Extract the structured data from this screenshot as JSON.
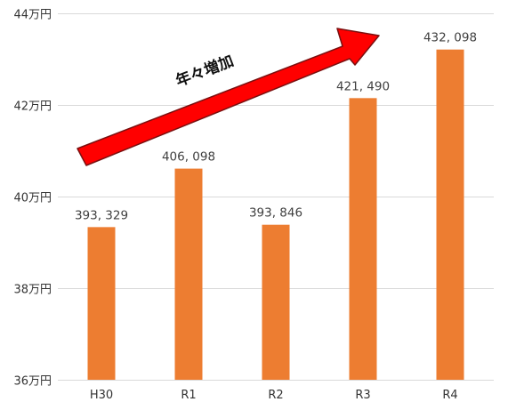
{
  "chart_data": {
    "type": "bar",
    "categories": [
      "H30",
      "R1",
      "R2",
      "R3",
      "R4"
    ],
    "values": [
      393329,
      406098,
      393846,
      421490,
      432098
    ],
    "data_labels": [
      "393, 329",
      "406, 098",
      "393, 846",
      "421, 490",
      "432, 098"
    ],
    "ylim": [
      360000,
      440000
    ],
    "yticks": [
      {
        "value": 360000,
        "label": "36万円"
      },
      {
        "value": 380000,
        "label": "38万円"
      },
      {
        "value": 400000,
        "label": "40万円"
      },
      {
        "value": 420000,
        "label": "42万円"
      },
      {
        "value": 440000,
        "label": "44万円"
      }
    ],
    "grid": true,
    "bar_color": "#ed7d31",
    "annotation": {
      "text": "年々増加",
      "arrow_color": "#ff0000"
    }
  }
}
